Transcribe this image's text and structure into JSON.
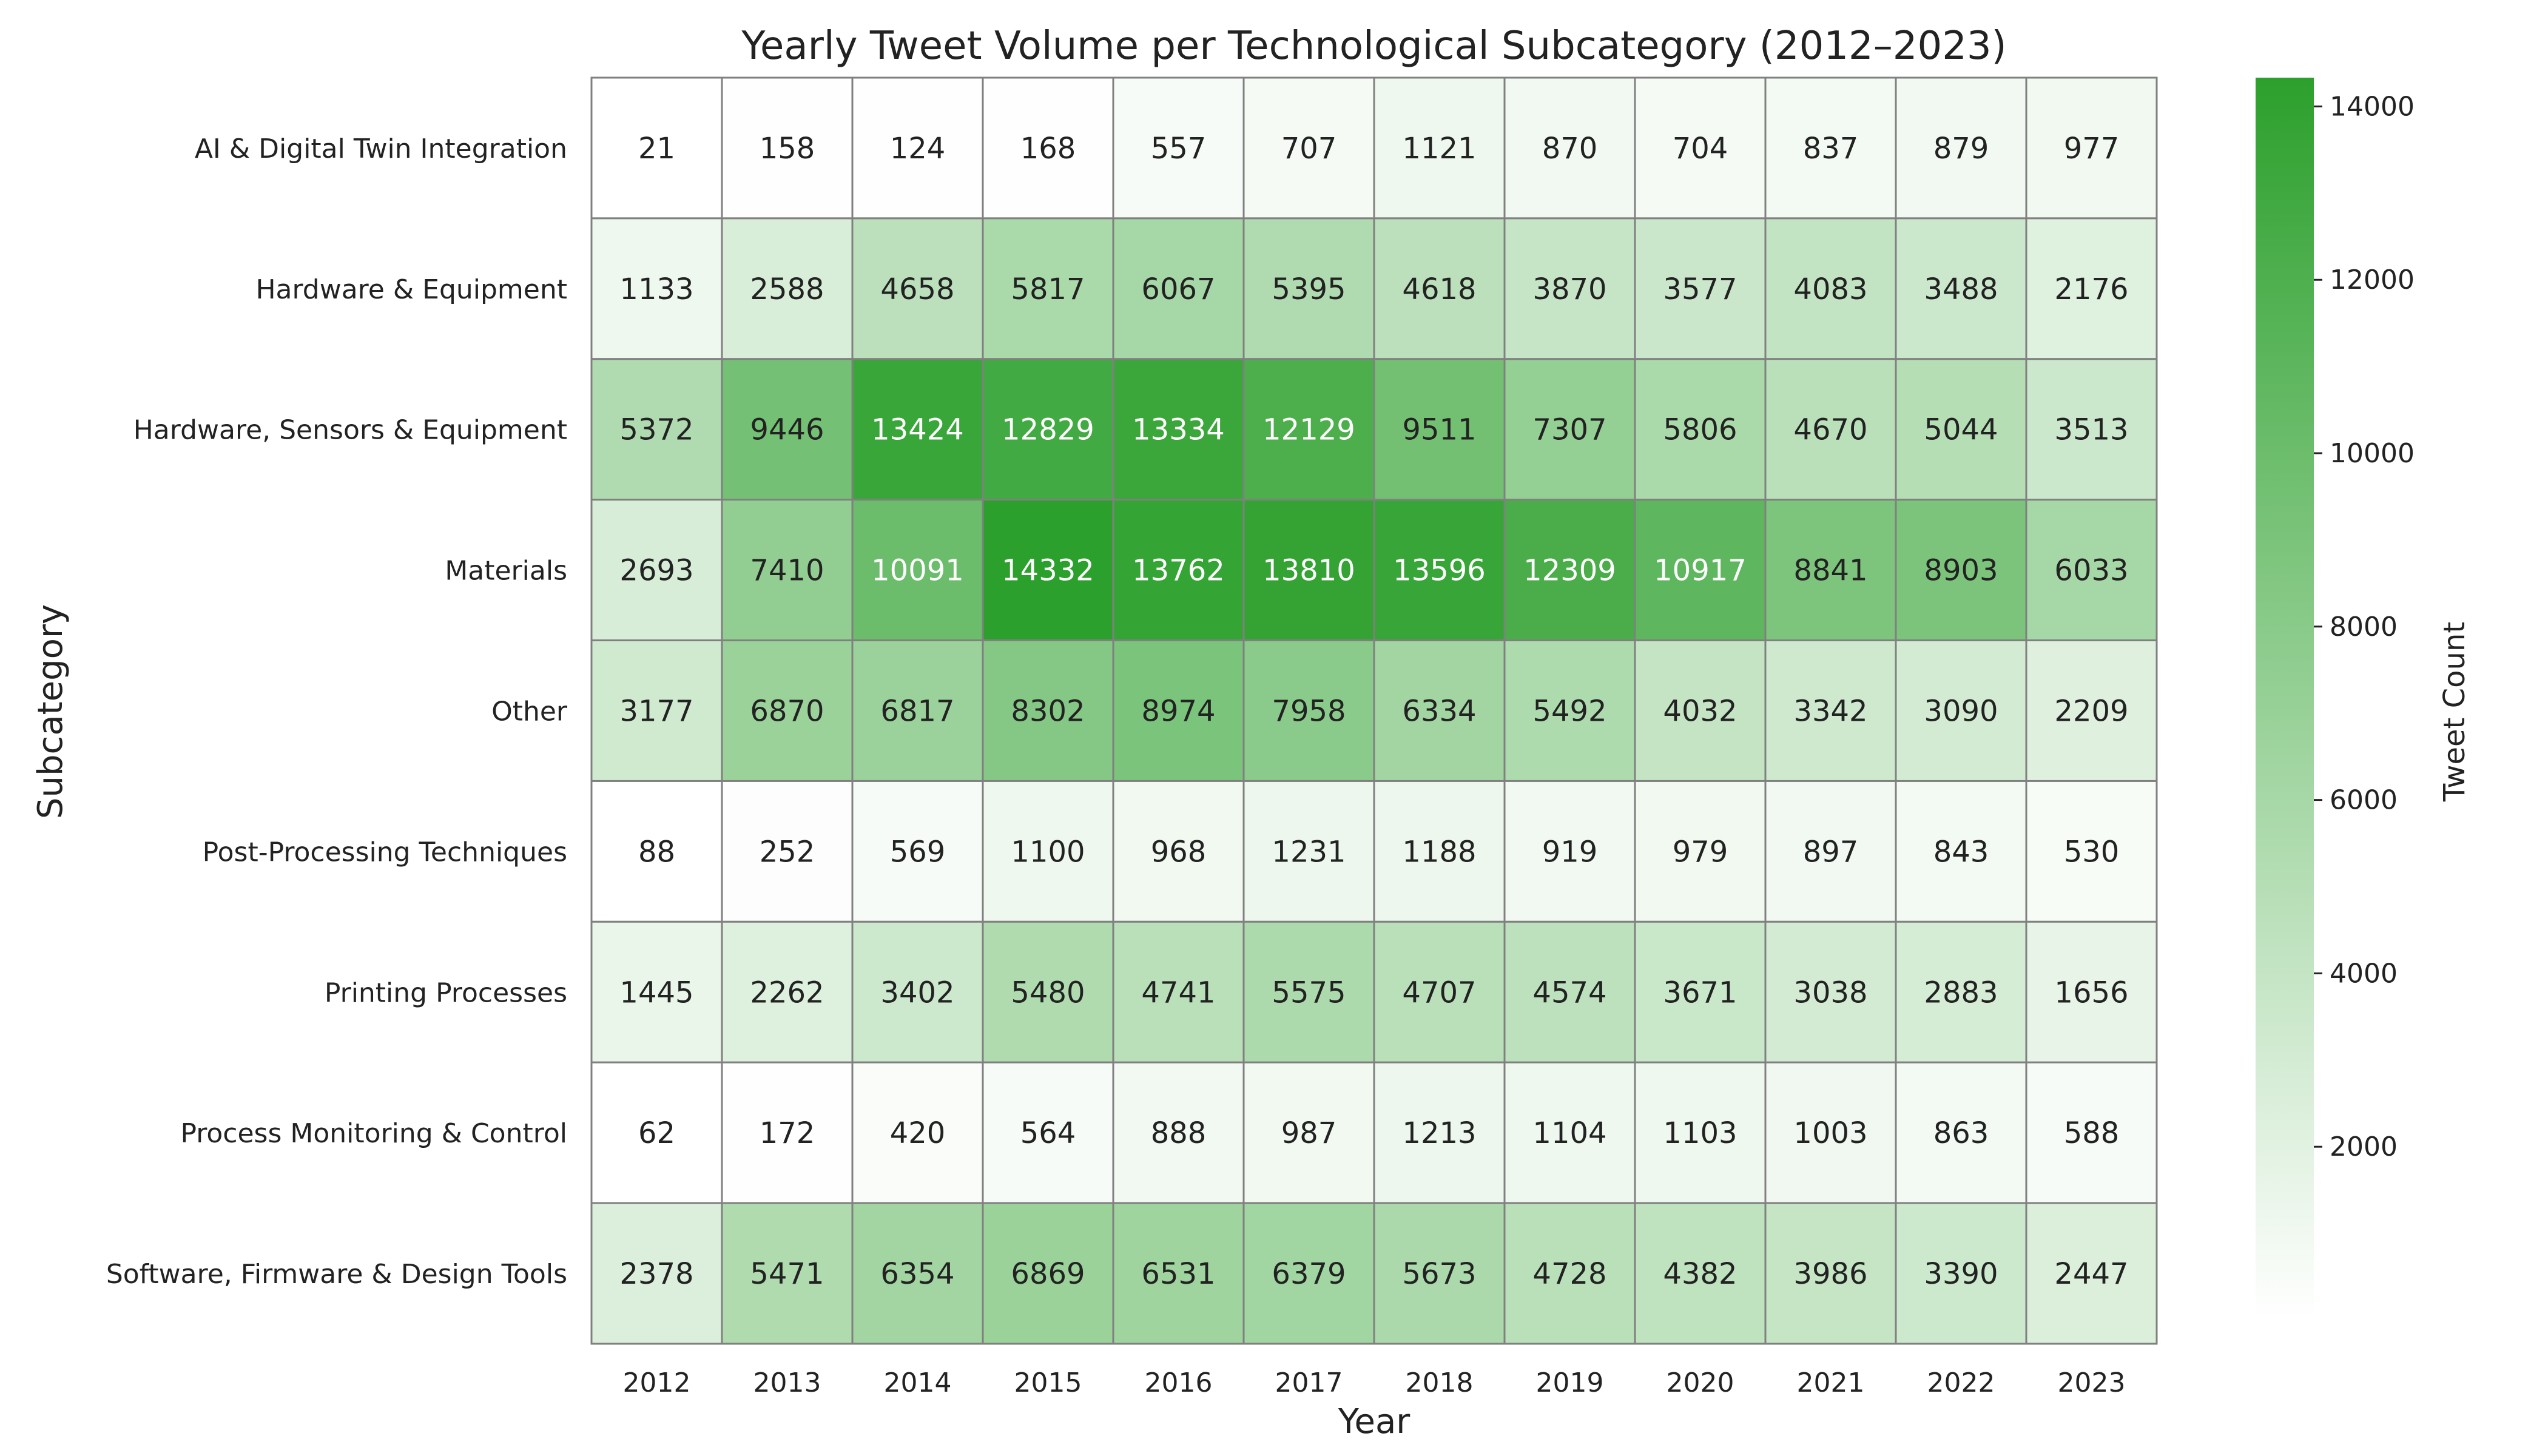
{
  "chart_data": {
    "type": "heatmap",
    "title": "Yearly Tweet Volume per Technological Subcategory (2012–2023)",
    "xlabel": "Year",
    "ylabel": "Subcategory",
    "x": [
      "2012",
      "2013",
      "2014",
      "2015",
      "2016",
      "2017",
      "2018",
      "2019",
      "2020",
      "2021",
      "2022",
      "2023"
    ],
    "y": [
      "AI & Digital Twin Integration",
      "Hardware & Equipment",
      "Hardware, Sensors & Equipment",
      "Materials",
      "Other",
      "Post-Processing Techniques",
      "Printing Processes",
      "Process Monitoring & Control",
      "Software, Firmware & Design Tools"
    ],
    "values": [
      [
        21,
        158,
        124,
        168,
        557,
        707,
        1121,
        870,
        704,
        837,
        879,
        977
      ],
      [
        1133,
        2588,
        4658,
        5817,
        6067,
        5395,
        4618,
        3870,
        3577,
        4083,
        3488,
        2176
      ],
      [
        5372,
        9446,
        13424,
        12829,
        13334,
        12129,
        9511,
        7307,
        5806,
        4670,
        5044,
        3513
      ],
      [
        2693,
        7410,
        10091,
        14332,
        13762,
        13810,
        13596,
        12309,
        10917,
        8841,
        8903,
        6033
      ],
      [
        3177,
        6870,
        6817,
        8302,
        8974,
        7958,
        6334,
        5492,
        4032,
        3342,
        3090,
        2209
      ],
      [
        88,
        252,
        569,
        1100,
        968,
        1231,
        1188,
        919,
        979,
        897,
        843,
        530
      ],
      [
        1445,
        2262,
        3402,
        5480,
        4741,
        5575,
        4707,
        4574,
        3671,
        3038,
        2883,
        1656
      ],
      [
        62,
        172,
        420,
        564,
        888,
        987,
        1213,
        1104,
        1103,
        1003,
        863,
        588
      ],
      [
        2378,
        5471,
        6354,
        6869,
        6531,
        6379,
        5673,
        4728,
        4382,
        3986,
        3390,
        2447
      ]
    ],
    "colorbar": {
      "label": "Tweet Count",
      "ticks": [
        2000,
        4000,
        6000,
        8000,
        10000,
        12000,
        14000
      ],
      "range": [
        21,
        14332
      ],
      "colors": [
        "#ffffff",
        "#2ca02c"
      ]
    },
    "cell_annotations": true,
    "annotation_color_threshold": 10000
  }
}
